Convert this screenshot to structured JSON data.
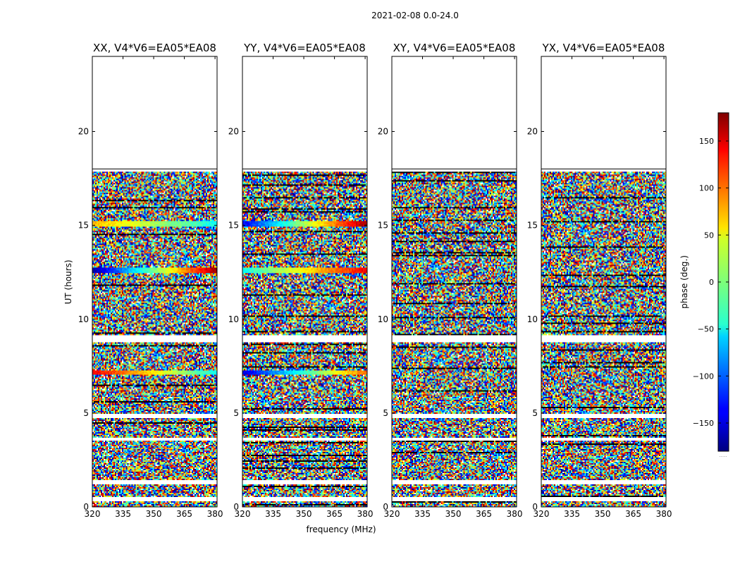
{
  "figure": {
    "suptitle": "2021-02-08 0.0-24.0",
    "xlabel": "frequency (MHz)",
    "ylabel": "UT (hours)"
  },
  "colorbar": {
    "label": "phase (deg.)",
    "range": [
      -180,
      180
    ],
    "ticks": [
      -150,
      -100,
      -50,
      0,
      50,
      100,
      150
    ],
    "tick_labels": [
      "−150",
      "−100",
      "−50",
      "0",
      "50",
      "100",
      "150"
    ],
    "colormap": "jet",
    "footer": "....."
  },
  "chart_data": {
    "type": "heatmap",
    "xlim": [
      320,
      381
    ],
    "ylim": [
      0,
      24
    ],
    "x_ticks": [
      320,
      335,
      350,
      365,
      380
    ],
    "x_tick_labels": [
      "320",
      "335",
      "350",
      "365",
      "380"
    ],
    "y_ticks": [
      0,
      5,
      10,
      15,
      20
    ],
    "y_tick_labels": [
      "0",
      "5",
      "10",
      "15",
      "20"
    ],
    "data_extent_hours": [
      0,
      18
    ],
    "value_description": "visibility phase (deg.), mostly noise-like between -180 and 180",
    "panels": [
      {
        "title": "XX, V4*V6=EA05*EA08",
        "coherent_bands": [
          {
            "ut": 15.1,
            "width": 0.25,
            "phase_start": 70,
            "phase_end": -40
          },
          {
            "ut": 12.6,
            "width": 0.32,
            "phase_start": -170,
            "phase_end": 170
          },
          {
            "ut": 7.2,
            "width": 0.22,
            "phase_start": 140,
            "phase_end": -40
          }
        ]
      },
      {
        "title": "YY, V4*V6=EA05*EA08",
        "coherent_bands": [
          {
            "ut": 15.1,
            "width": 0.25,
            "phase_start": -140,
            "phase_end": 170
          },
          {
            "ut": 12.6,
            "width": 0.32,
            "phase_start": -40,
            "phase_end": 140
          },
          {
            "ut": 7.2,
            "width": 0.22,
            "phase_start": -150,
            "phase_end": 100
          }
        ]
      },
      {
        "title": "XY, V4*V6=EA05*EA08",
        "coherent_bands": []
      },
      {
        "title": "YX, V4*V6=EA05*EA08",
        "coherent_bands": []
      }
    ],
    "flagged_ut_hours": [
      0.4,
      1.3,
      3.6,
      4.85,
      8.9,
      9.05,
      17.95
    ]
  }
}
